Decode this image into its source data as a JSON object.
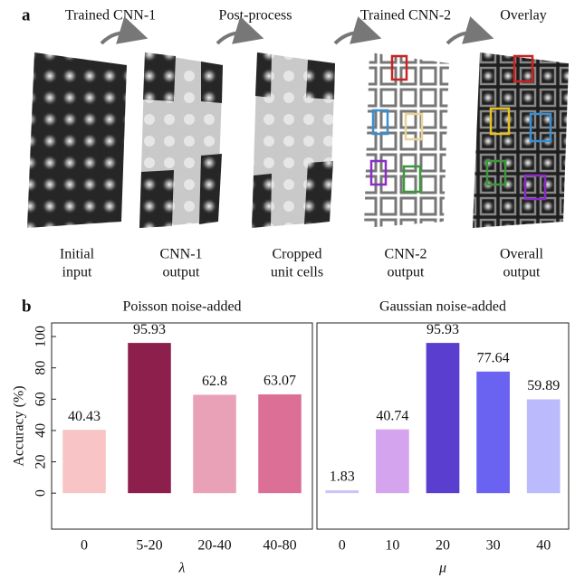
{
  "panel_a": {
    "label": "a",
    "steps": [
      "Trained CNN-1",
      "Post-process",
      "Trained CNN-2",
      "Overlay"
    ],
    "captions": [
      [
        "Initial",
        "input"
      ],
      [
        "CNN-1",
        "output"
      ],
      [
        "Cropped",
        "unit cells"
      ],
      [
        "CNN-2",
        "output"
      ],
      [
        "Overall",
        "output"
      ]
    ]
  },
  "panel_b_label": "b",
  "chart_data": [
    {
      "type": "bar",
      "title": "Poisson noise-added",
      "y_label": "Accuracy (%)",
      "x_label": "λ",
      "categories": [
        "0",
        "5-20",
        "20-40",
        "40-80"
      ],
      "values": [
        40.43,
        95.93,
        62.8,
        63.07
      ],
      "colors": [
        "#f8c4c6",
        "#8c1f4b",
        "#e8a1b7",
        "#dc6f96"
      ],
      "ylim": [
        -23,
        108.7
      ],
      "yticks": [
        0,
        20,
        40,
        60,
        80,
        100
      ]
    },
    {
      "type": "bar",
      "title": "Gaussian noise-added",
      "x_label": "μ",
      "categories": [
        "0",
        "10",
        "20",
        "30",
        "40"
      ],
      "values": [
        1.83,
        40.74,
        95.93,
        77.64,
        59.89
      ],
      "colors": [
        "#cbc6f6",
        "#d4a4ef",
        "#5a3ecf",
        "#6a62f0",
        "#babafc"
      ],
      "ylim": [
        -23,
        108.7
      ]
    }
  ]
}
